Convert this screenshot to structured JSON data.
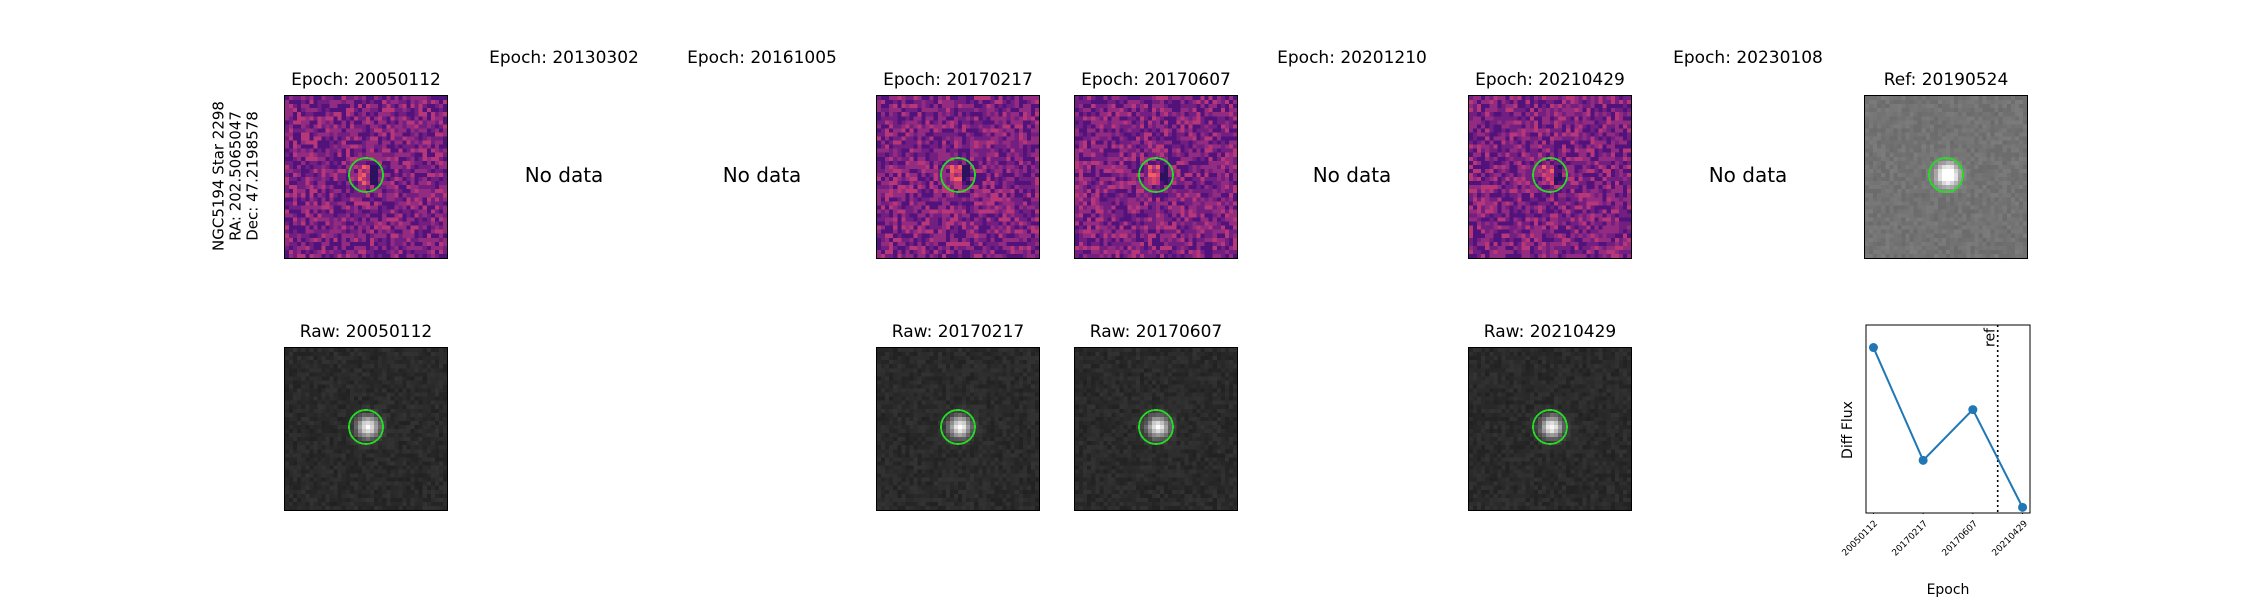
{
  "figure": {
    "side_label": [
      "NGC5194 Star 2298",
      "RA: 202.5065047",
      "Dec: 47.2198578"
    ],
    "no_data_text": "No data"
  },
  "top_row": [
    {
      "title": "Epoch: 20050112",
      "has_data": true,
      "kind": "diff"
    },
    {
      "title": "Epoch: 20130302",
      "has_data": false
    },
    {
      "title": "Epoch: 20161005",
      "has_data": false
    },
    {
      "title": "Epoch: 20170217",
      "has_data": true,
      "kind": "diff"
    },
    {
      "title": "Epoch: 20170607",
      "has_data": true,
      "kind": "diff"
    },
    {
      "title": "Epoch: 20201210",
      "has_data": false
    },
    {
      "title": "Epoch: 20210429",
      "has_data": true,
      "kind": "diff"
    },
    {
      "title": "Epoch: 20230108",
      "has_data": false
    },
    {
      "title": "Ref: 20190524",
      "has_data": true,
      "kind": "ref"
    }
  ],
  "bottom_row": [
    {
      "title": "Raw: 20050112",
      "column": 0
    },
    {
      "title": "Raw: 20170217",
      "column": 3
    },
    {
      "title": "Raw: 20170607",
      "column": 4
    },
    {
      "title": "Raw: 20210429",
      "column": 6
    }
  ],
  "colors": {
    "circle": "#22dd22",
    "series": "#1f77b4"
  },
  "chart_data": {
    "type": "line",
    "title": "",
    "xlabel": "Epoch",
    "ylabel": "Diff Flux",
    "categories": [
      "20050112",
      "20170217",
      "20170607",
      "20210429"
    ],
    "x": [
      0,
      1,
      2,
      3
    ],
    "values": [
      0.88,
      0.28,
      0.55,
      0.03
    ],
    "ylim": [
      0,
      1
    ],
    "ref_line": {
      "x": 2.5,
      "label": "ref",
      "style": "dotted"
    },
    "grid": false,
    "legend": "none"
  }
}
